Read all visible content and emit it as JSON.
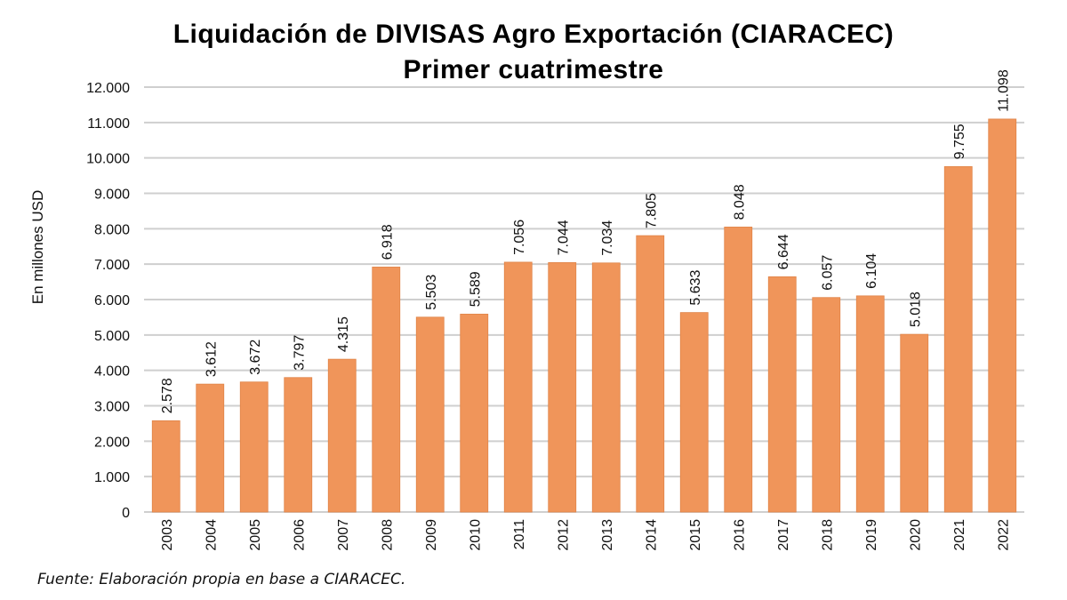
{
  "chart_data": {
    "type": "bar",
    "title": "Liquidación de DIVISAS Agro Exportación (CIARACEC)",
    "subtitle": "Primer cuatrimestre",
    "xlabel": "",
    "ylabel": "En millones USD",
    "ylim": [
      0,
      12000
    ],
    "yticks": [
      0,
      1000,
      2000,
      3000,
      4000,
      5000,
      6000,
      7000,
      8000,
      9000,
      10000,
      11000,
      12000
    ],
    "ytick_labels": [
      "0",
      "1.000",
      "2.000",
      "3.000",
      "4.000",
      "5.000",
      "6.000",
      "7.000",
      "8.000",
      "9.000",
      "10.000",
      "11.000",
      "12.000"
    ],
    "grid": true,
    "bar_color": "#F0955A",
    "categories": [
      "2003",
      "2004",
      "2005",
      "2006",
      "2007",
      "2008",
      "2009",
      "2010",
      "2011",
      "2012",
      "2013",
      "2014",
      "2015",
      "2016",
      "2017",
      "2018",
      "2019",
      "2020",
      "2021",
      "2022"
    ],
    "values": [
      2578,
      3612,
      3672,
      3797,
      4315,
      6918,
      5503,
      5589,
      7056,
      7044,
      7034,
      7805,
      5633,
      8048,
      6644,
      6057,
      6104,
      5018,
      9755,
      11098
    ],
    "data_labels": [
      "2.578",
      "3.612",
      "3.672",
      "3.797",
      "4.315",
      "6.918",
      "5.503",
      "5.589",
      "7.056",
      "7.044",
      "7.034",
      "7.805",
      "5.633",
      "8.048",
      "6.644",
      "6.057",
      "6.104",
      "5.018",
      "9.755",
      "11.098"
    ],
    "source": "Fuente: Elaboración  propia  en base a CIARACEC."
  }
}
